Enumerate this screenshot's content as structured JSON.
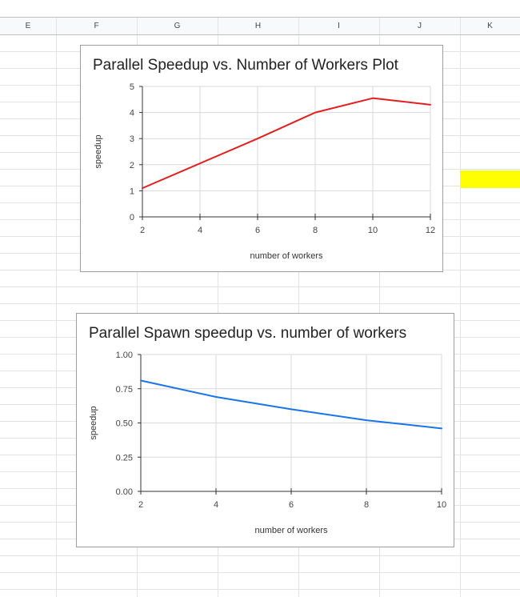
{
  "spreadsheet": {
    "columns": [
      "E",
      "F",
      "G",
      "H",
      "I",
      "J",
      "K"
    ],
    "highlight_color": "#ffff00"
  },
  "chart_data": [
    {
      "type": "line",
      "title": "Parallel Speedup vs. Number of Workers Plot",
      "xlabel": "number of workers",
      "ylabel": "speedup",
      "x": [
        2,
        4,
        6,
        8,
        10,
        12
      ],
      "series": [
        {
          "values": [
            1.1,
            2.05,
            3.0,
            4.0,
            4.55,
            4.3
          ],
          "color": "#e02020"
        }
      ],
      "xlim": [
        2,
        12
      ],
      "ylim": [
        0,
        5
      ],
      "x_ticks": [
        "2",
        "4",
        "6",
        "8",
        "10",
        "12"
      ],
      "y_ticks": [
        "0",
        "1",
        "2",
        "3",
        "4",
        "5"
      ],
      "grid": true,
      "legend": "none"
    },
    {
      "type": "line",
      "title": "Parallel Spawn speedup vs. number of workers",
      "xlabel": "number of workers",
      "ylabel": "speedup",
      "x": [
        2,
        4,
        6,
        8,
        10
      ],
      "series": [
        {
          "values": [
            0.81,
            0.69,
            0.6,
            0.52,
            0.46
          ],
          "color": "#1a73e8"
        }
      ],
      "xlim": [
        2,
        10
      ],
      "ylim": [
        0,
        1
      ],
      "x_ticks": [
        "2",
        "4",
        "6",
        "8",
        "10"
      ],
      "y_ticks": [
        "0.00",
        "0.25",
        "0.50",
        "0.75",
        "1.00"
      ],
      "grid": true,
      "legend": "none"
    }
  ]
}
